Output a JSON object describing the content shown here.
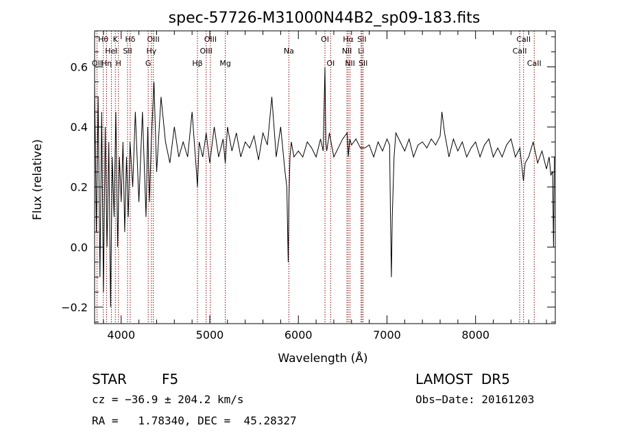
{
  "chart_data": {
    "type": "line",
    "title": "spec-57726-M31000N44B2_sp09-183.fits",
    "xlabel": "Wavelength (Å)",
    "ylabel": "Flux (relative)",
    "xlim": [
      3700,
      8900
    ],
    "ylim": [
      -0.255,
      0.72
    ],
    "x_ticks": [
      4000,
      5000,
      6000,
      7000,
      8000
    ],
    "x_tick_labels": [
      "4000",
      "5000",
      "6000",
      "7000",
      "8000"
    ],
    "y_ticks": [
      -0.2,
      0.0,
      0.2,
      0.4,
      0.6
    ],
    "y_tick_labels": [
      "−0.2",
      "0.0",
      "0.2",
      "0.4",
      "0.6"
    ],
    "series": [
      {
        "color": "#000000",
        "x": [
          3700,
          3720,
          3740,
          3760,
          3780,
          3800,
          3820,
          3840,
          3860,
          3880,
          3900,
          3920,
          3940,
          3960,
          3980,
          4000,
          4020,
          4040,
          4060,
          4080,
          4100,
          4130,
          4160,
          4200,
          4240,
          4280,
          4300,
          4320,
          4340,
          4370,
          4400,
          4450,
          4500,
          4550,
          4600,
          4650,
          4700,
          4750,
          4800,
          4850,
          4861,
          4880,
          4920,
          4960,
          5000,
          5050,
          5100,
          5150,
          5175,
          5200,
          5250,
          5300,
          5350,
          5400,
          5450,
          5500,
          5550,
          5600,
          5650,
          5700,
          5750,
          5800,
          5850,
          5870,
          5885,
          5893,
          5905,
          5920,
          5950,
          6000,
          6050,
          6100,
          6150,
          6200,
          6250,
          6280,
          6300,
          6310,
          6320,
          6350,
          6400,
          6450,
          6500,
          6550,
          6563,
          6580,
          6600,
          6650,
          6700,
          6750,
          6800,
          6850,
          6900,
          6950,
          7000,
          7030,
          7040,
          7050,
          7060,
          7080,
          7100,
          7150,
          7200,
          7250,
          7300,
          7350,
          7400,
          7450,
          7500,
          7550,
          7600,
          7620,
          7650,
          7700,
          7750,
          7800,
          7850,
          7900,
          7950,
          8000,
          8050,
          8100,
          8150,
          8200,
          8250,
          8300,
          8350,
          8400,
          8450,
          8500,
          8540,
          8560,
          8600,
          8650,
          8700,
          8750,
          8800,
          8830,
          8850,
          8870,
          8880,
          8890
        ],
        "values": [
          0.55,
          0.05,
          0.5,
          -0.1,
          0.45,
          -0.15,
          0.4,
          0.0,
          0.35,
          -0.2,
          0.3,
          0.1,
          0.45,
          0.0,
          0.3,
          0.15,
          0.35,
          0.05,
          0.3,
          0.1,
          0.35,
          0.2,
          0.45,
          0.15,
          0.45,
          0.1,
          0.4,
          0.15,
          0.35,
          0.55,
          0.25,
          0.5,
          0.35,
          0.28,
          0.4,
          0.3,
          0.35,
          0.3,
          0.45,
          0.25,
          0.2,
          0.35,
          0.3,
          0.38,
          0.28,
          0.4,
          0.3,
          0.36,
          0.28,
          0.4,
          0.32,
          0.38,
          0.3,
          0.35,
          0.33,
          0.37,
          0.29,
          0.38,
          0.34,
          0.5,
          0.3,
          0.4,
          0.25,
          0.2,
          -0.05,
          0.15,
          0.3,
          0.35,
          0.3,
          0.32,
          0.3,
          0.35,
          0.33,
          0.3,
          0.36,
          0.32,
          0.6,
          0.35,
          0.32,
          0.38,
          0.3,
          0.33,
          0.36,
          0.38,
          0.3,
          0.36,
          0.34,
          0.36,
          0.33,
          0.33,
          0.34,
          0.3,
          0.35,
          0.32,
          0.36,
          0.34,
          0.1,
          -0.1,
          0.1,
          0.3,
          0.38,
          0.35,
          0.32,
          0.36,
          0.3,
          0.34,
          0.35,
          0.33,
          0.36,
          0.34,
          0.37,
          0.45,
          0.38,
          0.3,
          0.36,
          0.32,
          0.35,
          0.3,
          0.33,
          0.35,
          0.3,
          0.34,
          0.36,
          0.3,
          0.33,
          0.3,
          0.34,
          0.36,
          0.3,
          0.33,
          0.22,
          0.28,
          0.3,
          0.35,
          0.28,
          0.32,
          0.26,
          0.3,
          0.24,
          0.25,
          0.0,
          0.3
        ]
      }
    ],
    "line_markers": [
      {
        "label": "OII",
        "wavelength": 3727,
        "row": 2
      },
      {
        "label": "Hθ",
        "wavelength": 3798,
        "row": 0
      },
      {
        "label": "Hη",
        "wavelength": 3835,
        "row": 2
      },
      {
        "label": "K",
        "wavelength": 3934,
        "row": 0
      },
      {
        "label": "HeI",
        "wavelength": 3889,
        "row": 1
      },
      {
        "label": "H",
        "wavelength": 3969,
        "row": 2
      },
      {
        "label": "Hδ",
        "wavelength": 4102,
        "row": 0
      },
      {
        "label": "SII",
        "wavelength": 4072,
        "row": 1
      },
      {
        "label": "OIII",
        "wavelength": 4363,
        "row": 0
      },
      {
        "label": "Hγ",
        "wavelength": 4341,
        "row": 1
      },
      {
        "label": "G",
        "wavelength": 4305,
        "row": 2
      },
      {
        "label": "Hβ",
        "wavelength": 4861,
        "row": 2
      },
      {
        "label": "OIII",
        "wavelength": 5007,
        "row": 0
      },
      {
        "label": "OIII",
        "wavelength": 4959,
        "row": 1
      },
      {
        "label": "Mg",
        "wavelength": 5175,
        "row": 2
      },
      {
        "label": "Na",
        "wavelength": 5893,
        "row": 1
      },
      {
        "label": "OI",
        "wavelength": 6300,
        "row": 0
      },
      {
        "label": "OI",
        "wavelength": 6364,
        "row": 2
      },
      {
        "label": "Hα",
        "wavelength": 6563,
        "row": 0
      },
      {
        "label": "NII",
        "wavelength": 6548,
        "row": 1
      },
      {
        "label": "NII",
        "wavelength": 6583,
        "row": 2
      },
      {
        "label": "SII",
        "wavelength": 6717,
        "row": 0
      },
      {
        "label": "Li",
        "wavelength": 6708,
        "row": 1
      },
      {
        "label": "SII",
        "wavelength": 6731,
        "row": 2
      },
      {
        "label": "CaII",
        "wavelength": 8542,
        "row": 0
      },
      {
        "label": "CaII",
        "wavelength": 8498,
        "row": 1
      },
      {
        "label": "CaII",
        "wavelength": 8662,
        "row": 2
      }
    ],
    "grid": false,
    "legend": false
  },
  "info": {
    "object_class": "STAR",
    "subclass": "F5",
    "survey": "LAMOST  DR5",
    "redshift_line": "cz = −36.9 ± 204.2 km/s",
    "obs_date_line": "Obs−Date: 20161203",
    "coords_line": "RA =   1.78340, DEC =  45.28327"
  },
  "colors": {
    "spectrum": "#000000",
    "marker_line": "#8b0000",
    "axes": "#000000"
  }
}
